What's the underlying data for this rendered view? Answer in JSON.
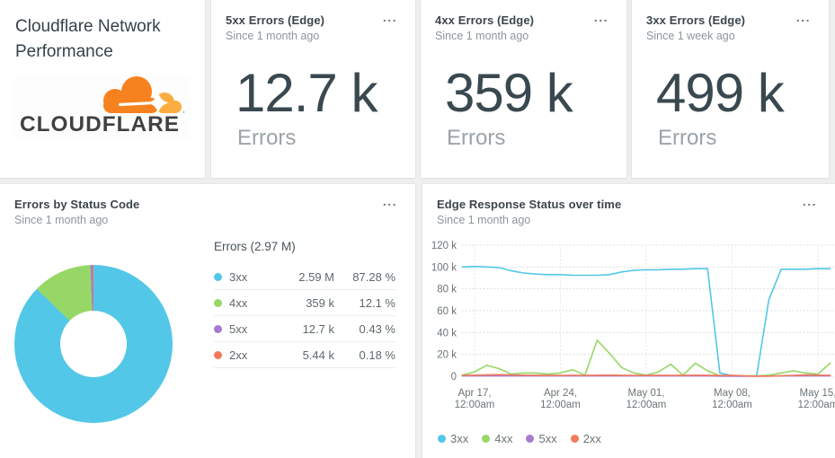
{
  "ui": {
    "menu_label": "..."
  },
  "header_card": {
    "title": "Cloudflare Network Performance",
    "logo_text": "CLOUDFLARE"
  },
  "stat_cards": [
    {
      "title": "5xx Errors (Edge)",
      "subtitle": "Since 1 month ago",
      "value": "12.7 k",
      "unit": "Errors"
    },
    {
      "title": "4xx Errors (Edge)",
      "subtitle": "Since 1 month ago",
      "value": "359 k",
      "unit": "Errors"
    },
    {
      "title": "3xx Errors (Edge)",
      "subtitle": "Since 1 week ago",
      "value": "499 k",
      "unit": "Errors"
    }
  ],
  "pie_card": {
    "title": "Errors by Status Code",
    "subtitle": "Since 1 month ago",
    "table_header": "Errors (2.97 M)"
  },
  "line_card": {
    "title": "Edge Response Status over time",
    "subtitle": "Since 1 month ago"
  },
  "chart_data": [
    {
      "type": "pie",
      "donut": true,
      "title": "Errors by Status Code",
      "subtitle": "Since 1 month ago",
      "total_label": "Errors (2.97 M)",
      "total": "2.97 M",
      "slices": [
        {
          "label": "3xx",
          "value": "2.59 M",
          "percent": 87.28,
          "percent_label": "87.28 %",
          "color": "#53c7e8"
        },
        {
          "label": "4xx",
          "value": "359 k",
          "percent": 12.1,
          "percent_label": "12.1 %",
          "color": "#97d767"
        },
        {
          "label": "5xx",
          "value": "12.7 k",
          "percent": 0.43,
          "percent_label": "0.43 %",
          "color": "#a77bd1"
        },
        {
          "label": "2xx",
          "value": "5.44 k",
          "percent": 0.18,
          "percent_label": "0.18 %",
          "color": "#f3795b"
        }
      ]
    },
    {
      "type": "line",
      "title": "Edge Response Status over time",
      "subtitle": "Since 1 month ago",
      "grid": true,
      "legend_position": "bottom",
      "ylim_k": [
        0,
        120
      ],
      "y_ticks": [
        {
          "v": 120,
          "label": "120 k"
        },
        {
          "v": 100,
          "label": "100 k"
        },
        {
          "v": 80,
          "label": "80 k"
        },
        {
          "v": 60,
          "label": "60 k"
        },
        {
          "v": 40,
          "label": "40 k"
        },
        {
          "v": 20,
          "label": "20 k"
        },
        {
          "v": 0,
          "label": "0"
        }
      ],
      "x_ticks": [
        {
          "date": "Apr 17,",
          "time": "12:00am"
        },
        {
          "date": "Apr 24,",
          "time": "12:00am"
        },
        {
          "date": "May 01,",
          "time": "12:00am"
        },
        {
          "date": "May 08,",
          "time": "12:00am"
        },
        {
          "date": "May 15,",
          "time": "12:00am"
        }
      ],
      "x_step_days": 1,
      "series": [
        {
          "name": "3xx",
          "color": "#53c7e8",
          "values_k": [
            100,
            100.5,
            100,
            99.5,
            96.5,
            94.5,
            93.5,
            93,
            93,
            92.5,
            92.5,
            92.5,
            93,
            95.5,
            97,
            97.5,
            97.5,
            98,
            98,
            98.5,
            98.5,
            3,
            0.6,
            0.4,
            0.3,
            70,
            98,
            98,
            98,
            98.5,
            98.5
          ]
        },
        {
          "name": "4xx",
          "color": "#97d767",
          "values_k": [
            1,
            4,
            10,
            7,
            2,
            3,
            3,
            2,
            3,
            6,
            1,
            33,
            21,
            8,
            3,
            1,
            4,
            11,
            1,
            12,
            5,
            0.5,
            0.4,
            0.3,
            0.3,
            1,
            3,
            5,
            3,
            2,
            12
          ]
        },
        {
          "name": "5xx",
          "color": "#a77bd1",
          "values_k": [
            0.3,
            0.3,
            0.3,
            0.3,
            0.3,
            0.3,
            0.3,
            0.3,
            0.3,
            0.3,
            0.3,
            0.3,
            0.3,
            0.3,
            0.3,
            0.3,
            0.3,
            0.3,
            0.3,
            0.3,
            0.3,
            0.2,
            0.1,
            0.1,
            0.1,
            0.2,
            0.3,
            0.3,
            0.3,
            0.3,
            0.3
          ]
        },
        {
          "name": "2xx",
          "color": "#f3795b",
          "values_k": [
            0.8,
            1,
            1.3,
            1.5,
            1.2,
            1,
            0.9,
            0.9,
            0.8,
            0.9,
            0.8,
            1,
            1.1,
            0.9,
            0.8,
            0.8,
            0.9,
            0.8,
            0.9,
            1,
            0.9,
            0.7,
            0.9,
            0.3,
            0.2,
            0.2,
            0.5,
            0.8,
            1.3,
            1,
            0.9
          ]
        }
      ],
      "legend": [
        "3xx",
        "4xx",
        "5xx",
        "2xx"
      ]
    }
  ]
}
